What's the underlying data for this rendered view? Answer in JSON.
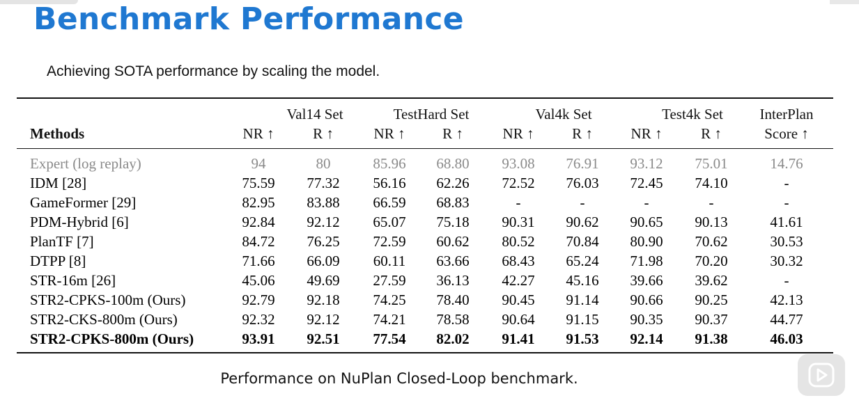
{
  "slide": {
    "title": "Benchmark Performance",
    "subtitle": "Achieving SOTA performance by scaling the model.",
    "caption": "Performance on NuPlan Closed-Loop benchmark."
  },
  "table": {
    "methods_header": "Methods",
    "groups": [
      {
        "label": "Val14 Set",
        "cols": [
          "NR ↑",
          "R ↑"
        ]
      },
      {
        "label": "TestHard Set",
        "cols": [
          "NR ↑",
          "R ↑"
        ]
      },
      {
        "label": "Val4k Set",
        "cols": [
          "NR ↑",
          "R ↑"
        ]
      },
      {
        "label": "Test4k Set",
        "cols": [
          "NR ↑",
          "R ↑"
        ]
      },
      {
        "label": "InterPlan",
        "cols": [
          "Score ↑"
        ]
      }
    ],
    "rows": [
      {
        "method": "Expert (log replay)",
        "values": [
          "94",
          "80",
          "85.96",
          "68.80",
          "93.08",
          "76.91",
          "93.12",
          "75.01",
          "14.76"
        ],
        "style": "expert"
      },
      {
        "method": "IDM [28]",
        "values": [
          "75.59",
          "77.32",
          "56.16",
          "62.26",
          "72.52",
          "76.03",
          "72.45",
          "74.10",
          "-"
        ],
        "style": "normal"
      },
      {
        "method": "GameFormer [29]",
        "values": [
          "82.95",
          "83.88",
          "66.59",
          "68.83",
          "-",
          "-",
          "-",
          "-",
          "-"
        ],
        "style": "normal"
      },
      {
        "method": "PDM-Hybrid [6]",
        "values": [
          "92.84",
          "92.12",
          "65.07",
          "75.18",
          "90.31",
          "90.62",
          "90.65",
          "90.13",
          "41.61"
        ],
        "style": "normal"
      },
      {
        "method": "PlanTF [7]",
        "values": [
          "84.72",
          "76.25",
          "72.59",
          "60.62",
          "80.52",
          "70.84",
          "80.90",
          "70.62",
          "30.53"
        ],
        "style": "normal"
      },
      {
        "method": "DTPP [8]",
        "values": [
          "71.66",
          "66.09",
          "60.11",
          "63.66",
          "68.43",
          "65.24",
          "71.98",
          "70.20",
          "30.32"
        ],
        "style": "normal"
      },
      {
        "method": "STR-16m [26]",
        "values": [
          "45.06",
          "49.69",
          "27.59",
          "36.13",
          "42.27",
          "45.16",
          "39.66",
          "39.62",
          "-"
        ],
        "style": "normal"
      },
      {
        "method": "STR2-CPKS-100m (Ours)",
        "values": [
          "92.79",
          "92.18",
          "74.25",
          "78.40",
          "90.45",
          "91.14",
          "90.66",
          "90.25",
          "42.13"
        ],
        "style": "normal"
      },
      {
        "method": "STR2-CKS-800m (Ours)",
        "values": [
          "92.32",
          "92.12",
          "74.21",
          "78.58",
          "90.64",
          "91.15",
          "90.35",
          "90.37",
          "44.77"
        ],
        "style": "normal"
      },
      {
        "method": "STR2-CPKS-800m (Ours)",
        "values": [
          "93.91",
          "92.51",
          "77.54",
          "82.02",
          "91.41",
          "91.53",
          "92.14",
          "91.38",
          "46.03"
        ],
        "style": "bold"
      }
    ]
  },
  "overlay": {
    "icon": "play-icon",
    "badge_color": "#e1e1e1"
  },
  "colors": {
    "title": "#1f78d1",
    "text": "#111111",
    "expert_row": "#8a8a8a"
  }
}
